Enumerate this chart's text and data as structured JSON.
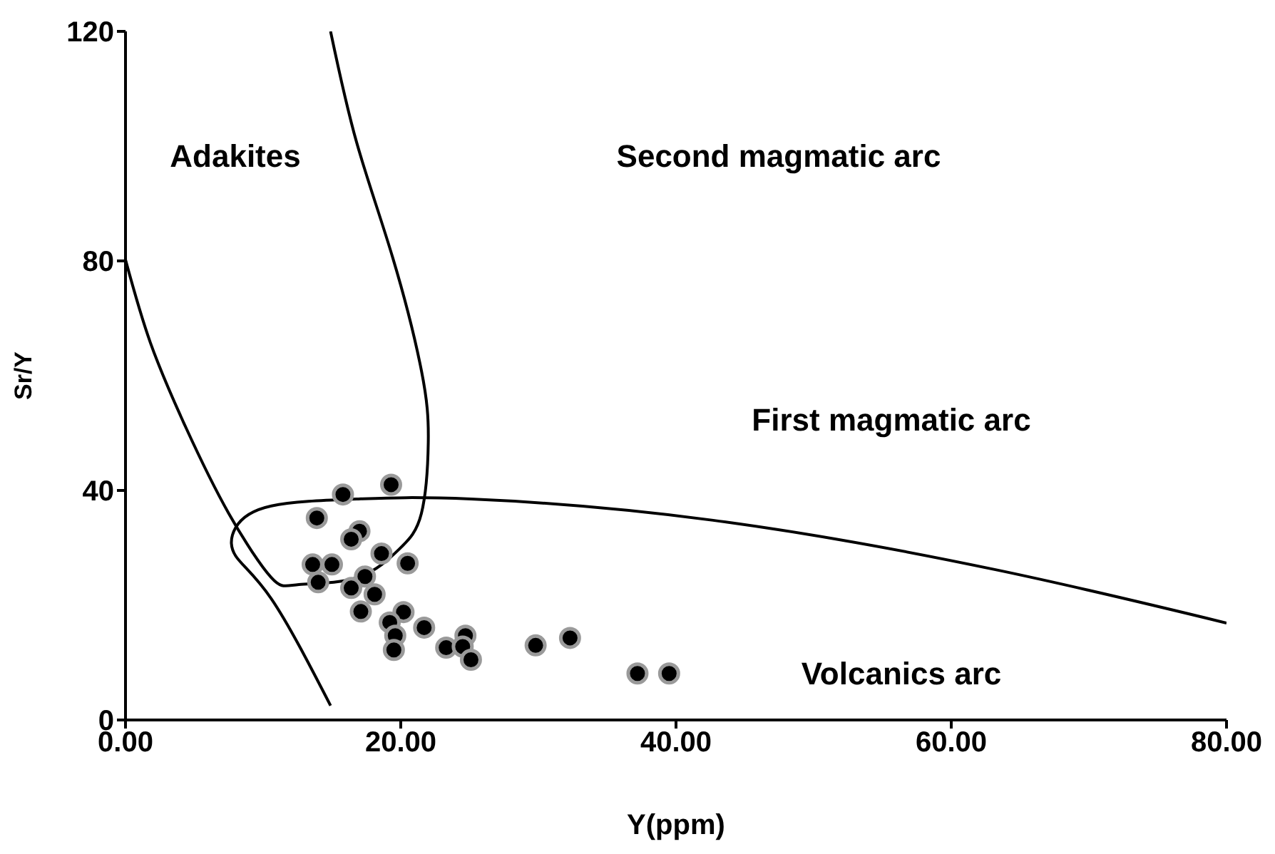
{
  "chart_data": {
    "type": "scatter",
    "xlabel": "Y(ppm)",
    "ylabel": "Sr/Y",
    "xlim": [
      0,
      80
    ],
    "ylim": [
      0,
      120
    ],
    "xticks": [
      {
        "value": 0,
        "label": "0.00"
      },
      {
        "value": 20,
        "label": "20.00"
      },
      {
        "value": 40,
        "label": "40.00"
      },
      {
        "value": 60,
        "label": "60.00"
      },
      {
        "value": 80,
        "label": "80.00"
      }
    ],
    "yticks": [
      0,
      40,
      80,
      120
    ],
    "grid": false,
    "legend": false,
    "marker": "circle",
    "line_style": "solid",
    "annotations": [
      "Adakites",
      "Second magmatic arc",
      "First magmatic arc",
      "Volcanics arc"
    ],
    "series": [
      {
        "type": "scatter",
        "color": "#000000",
        "x": [
          15.8,
          19.3,
          13.9,
          17.0,
          16.4,
          18.6,
          13.6,
          15.0,
          20.5,
          14.0,
          17.4,
          16.4,
          18.1,
          17.1,
          20.2,
          19.2,
          19.6,
          19.5,
          21.7,
          23.3,
          24.7,
          24.5,
          25.1,
          29.8,
          32.3,
          37.2,
          39.5
        ],
        "values": [
          39.3,
          41.0,
          35.2,
          32.9,
          31.5,
          29.0,
          27.1,
          27.1,
          27.3,
          24.0,
          25.0,
          23.0,
          21.9,
          18.9,
          18.8,
          17.0,
          14.7,
          12.2,
          16.1,
          12.6,
          14.7,
          12.8,
          10.5,
          13.0,
          14.3,
          8.1,
          8.1
        ]
      },
      {
        "type": "line",
        "color": "#000000",
        "marker": "none",
        "x": [
          14.9,
          16.8,
          19.4,
          21.5,
          22,
          21.5,
          19.9,
          16.8,
          12.6,
          10.6,
          7.5,
          4.4,
          1.8,
          0
        ],
        "values": [
          120,
          100.6,
          80.7,
          60.9,
          48.4,
          36,
          29.8,
          24.8,
          23.6,
          24.8,
          36,
          50.9,
          65.8,
          80.2
        ]
      },
      {
        "type": "line",
        "color": "#000000",
        "marker": "none",
        "x": [
          80,
          63.4,
          42.7,
          25.1,
          16.8,
          10.6,
          8,
          8,
          10.6,
          14.9
        ],
        "values": [
          16.9,
          26.1,
          34.8,
          38.5,
          38.5,
          37.3,
          33.5,
          28.6,
          21.1,
          2.5
        ]
      }
    ]
  }
}
